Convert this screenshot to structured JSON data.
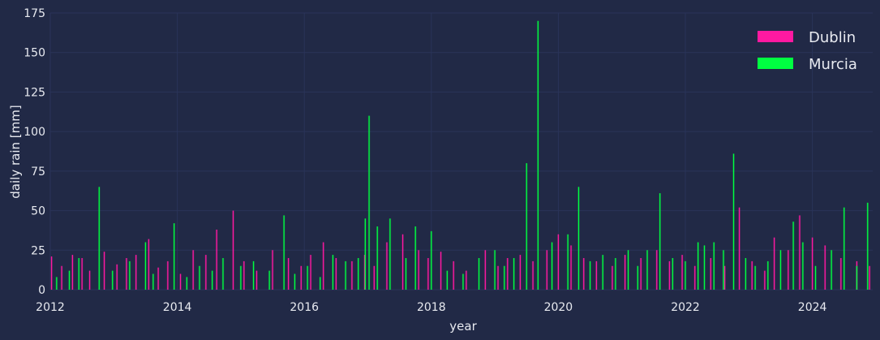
{
  "colors": {
    "background": "#212946",
    "grid": "#2A3459",
    "text": "#E8EAF0"
  },
  "chart_data": {
    "type": "bar",
    "title": "",
    "xlabel": "year",
    "ylabel": "daily rain [mm]",
    "xlim": [
      2012.0,
      2024.95
    ],
    "ylim": [
      0,
      175
    ],
    "xticks": [
      "2012",
      "2014",
      "2016",
      "2018",
      "2020",
      "2022",
      "2024"
    ],
    "yticks": [
      "0",
      "25",
      "50",
      "75",
      "100",
      "125",
      "150",
      "175"
    ],
    "grid": true,
    "legend_position": "top-right",
    "legend": [
      "Dublin",
      "Murcia"
    ],
    "series": [
      {
        "name": "Dublin",
        "color": "#FE19A1",
        "x": [
          2012.02,
          2012.18,
          2012.35,
          2012.5,
          2012.62,
          2012.85,
          2013.05,
          2013.2,
          2013.35,
          2013.55,
          2013.7,
          2013.85,
          2014.05,
          2014.25,
          2014.45,
          2014.62,
          2014.88,
          2015.05,
          2015.25,
          2015.5,
          2015.75,
          2015.95,
          2016.1,
          2016.3,
          2016.5,
          2016.75,
          2016.95,
          2017.1,
          2017.3,
          2017.55,
          2017.8,
          2017.95,
          2018.15,
          2018.35,
          2018.55,
          2018.85,
          2019.05,
          2019.2,
          2019.4,
          2019.6,
          2019.82,
          2020.0,
          2020.2,
          2020.4,
          2020.6,
          2020.85,
          2021.05,
          2021.3,
          2021.55,
          2021.75,
          2021.95,
          2022.15,
          2022.4,
          2022.62,
          2022.85,
          2023.05,
          2023.25,
          2023.4,
          2023.62,
          2023.8,
          2024.0,
          2024.2,
          2024.45,
          2024.7,
          2024.9
        ],
        "values": [
          21,
          15,
          22,
          20,
          12,
          24,
          16,
          20,
          22,
          32,
          14,
          18,
          10,
          25,
          22,
          38,
          50,
          18,
          12,
          25,
          20,
          15,
          22,
          30,
          20,
          18,
          22,
          15,
          30,
          35,
          25,
          20,
          24,
          18,
          12,
          25,
          15,
          20,
          22,
          18,
          25,
          35,
          28,
          20,
          18,
          15,
          22,
          20,
          25,
          18,
          22,
          15,
          20,
          15,
          52,
          18,
          12,
          33,
          25,
          47,
          33,
          28,
          20,
          18,
          15
        ]
      },
      {
        "name": "Murcia",
        "color": "#00FF41",
        "x": [
          2012.1,
          2012.3,
          2012.45,
          2012.77,
          2012.98,
          2013.25,
          2013.5,
          2013.62,
          2013.95,
          2014.15,
          2014.35,
          2014.55,
          2014.72,
          2015.0,
          2015.2,
          2015.45,
          2015.68,
          2015.85,
          2016.05,
          2016.25,
          2016.45,
          2016.65,
          2016.85,
          2016.96,
          2017.02,
          2017.15,
          2017.35,
          2017.6,
          2017.75,
          2018.0,
          2018.25,
          2018.5,
          2018.75,
          2019.0,
          2019.15,
          2019.3,
          2019.5,
          2019.68,
          2019.9,
          2020.15,
          2020.32,
          2020.5,
          2020.7,
          2020.9,
          2021.1,
          2021.25,
          2021.4,
          2021.6,
          2021.8,
          2022.0,
          2022.2,
          2022.3,
          2022.45,
          2022.6,
          2022.76,
          2022.95,
          2023.1,
          2023.3,
          2023.5,
          2023.7,
          2023.85,
          2024.05,
          2024.3,
          2024.5,
          2024.7,
          2024.87
        ],
        "values": [
          8,
          12,
          20,
          65,
          12,
          18,
          30,
          10,
          42,
          8,
          15,
          12,
          20,
          15,
          18,
          12,
          47,
          10,
          15,
          8,
          22,
          18,
          20,
          45,
          110,
          40,
          45,
          20,
          40,
          37,
          12,
          10,
          20,
          25,
          15,
          20,
          80,
          170,
          30,
          35,
          65,
          18,
          22,
          20,
          25,
          15,
          25,
          61,
          20,
          18,
          30,
          28,
          30,
          25,
          86,
          20,
          15,
          18,
          25,
          43,
          30,
          15,
          25,
          52,
          15,
          55
        ]
      }
    ]
  }
}
